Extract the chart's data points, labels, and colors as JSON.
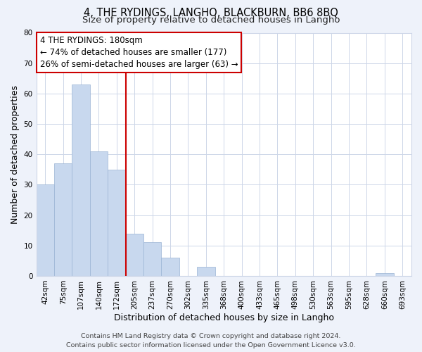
{
  "title": "4, THE RYDINGS, LANGHO, BLACKBURN, BB6 8BQ",
  "subtitle": "Size of property relative to detached houses in Langho",
  "xlabel": "Distribution of detached houses by size in Langho",
  "ylabel": "Number of detached properties",
  "bar_labels": [
    "42sqm",
    "75sqm",
    "107sqm",
    "140sqm",
    "172sqm",
    "205sqm",
    "237sqm",
    "270sqm",
    "302sqm",
    "335sqm",
    "368sqm",
    "400sqm",
    "433sqm",
    "465sqm",
    "498sqm",
    "530sqm",
    "563sqm",
    "595sqm",
    "628sqm",
    "660sqm",
    "693sqm"
  ],
  "bar_values": [
    30,
    37,
    63,
    41,
    35,
    14,
    11,
    6,
    0,
    3,
    0,
    0,
    0,
    0,
    0,
    0,
    0,
    0,
    0,
    1,
    0
  ],
  "bar_color": "#c8d8ee",
  "bar_edge_color": "#9ab4d4",
  "vline_x": 4.5,
  "vline_color": "#cc0000",
  "ylim": [
    0,
    80
  ],
  "yticks": [
    0,
    10,
    20,
    30,
    40,
    50,
    60,
    70,
    80
  ],
  "annotation_line1": "4 THE RYDINGS: 180sqm",
  "annotation_line2": "← 74% of detached houses are smaller (177)",
  "annotation_line3": "26% of semi-detached houses are larger (63) →",
  "footer_line1": "Contains HM Land Registry data © Crown copyright and database right 2024.",
  "footer_line2": "Contains public sector information licensed under the Open Government Licence v3.0.",
  "bg_color": "#eef2fa",
  "plot_bg_color": "#ffffff",
  "grid_color": "#cdd6e8",
  "title_fontsize": 10.5,
  "subtitle_fontsize": 9.5,
  "axis_label_fontsize": 9,
  "tick_fontsize": 7.5,
  "annotation_fontsize": 8.5,
  "footer_fontsize": 6.8
}
